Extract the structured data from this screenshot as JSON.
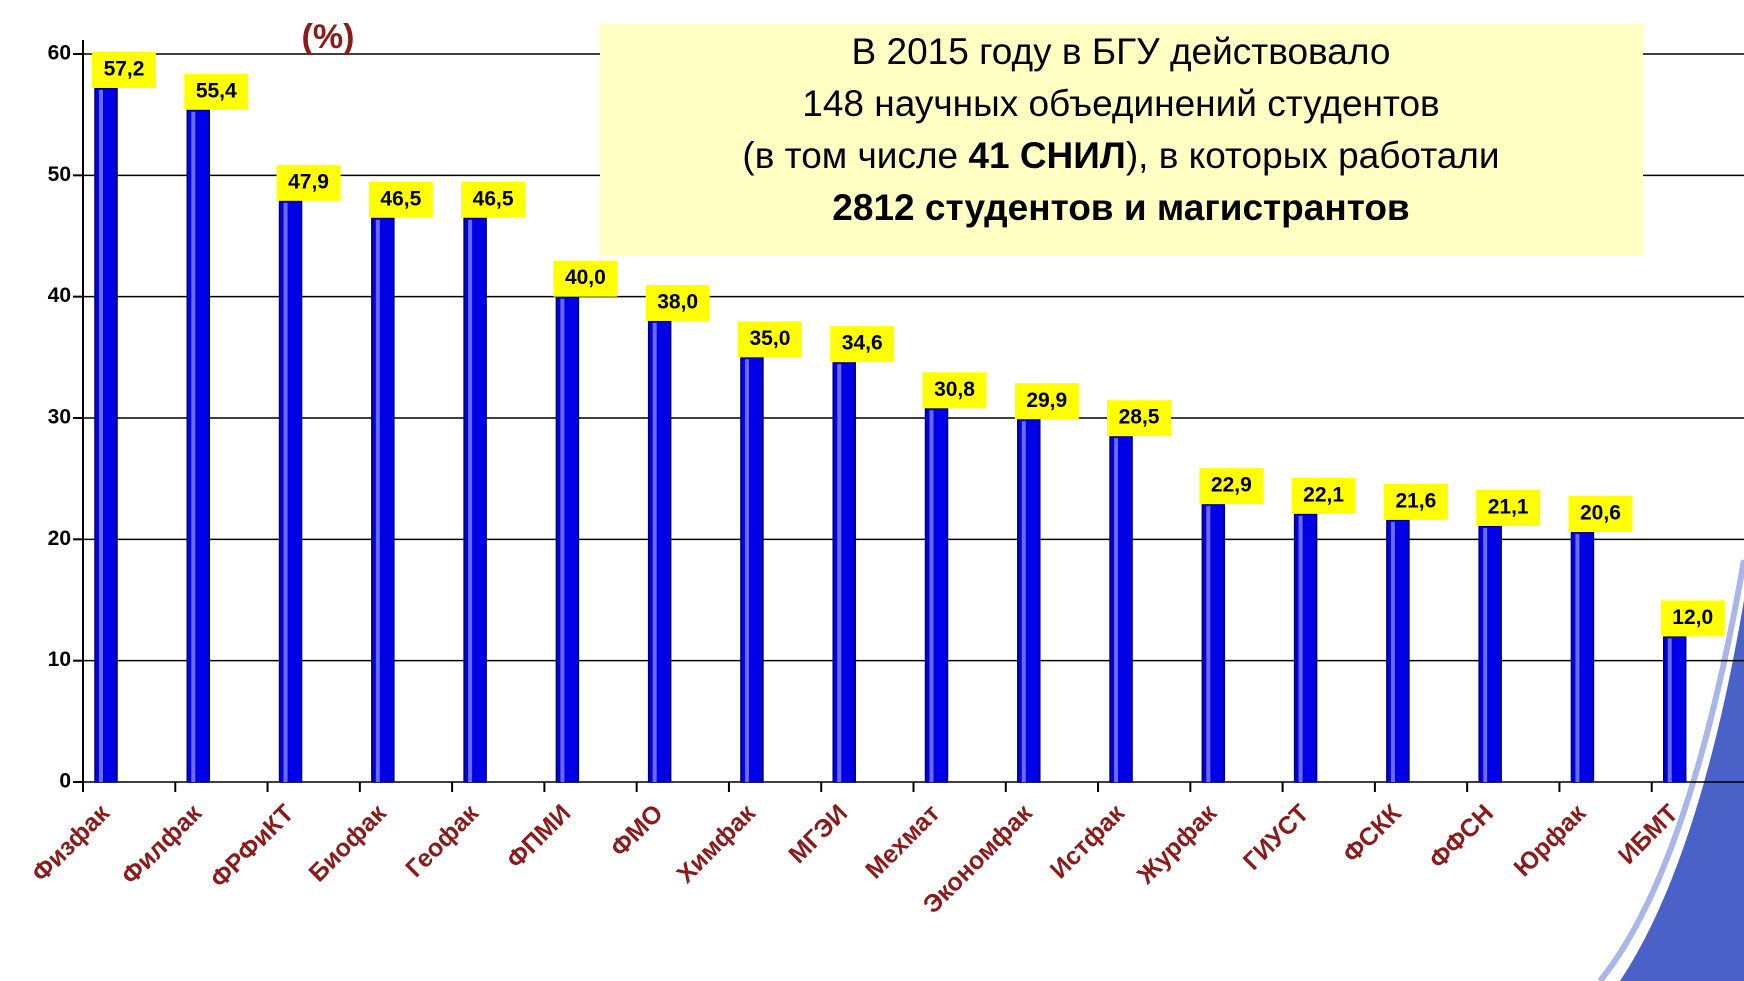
{
  "chart_data": {
    "type": "bar",
    "title": "(%)",
    "categories": [
      "Физфак",
      "Филфак",
      "ФРФиКТ",
      "Биофак",
      "Геофак",
      "ФПМИ",
      "ФМО",
      "Химфак",
      "МГЭИ",
      "Мехмат",
      "Экономфак",
      "Истфак",
      "Журфак",
      "ГИУСТ",
      "ФСКК",
      "ФФСН",
      "Юрфак",
      "ИБМТ"
    ],
    "values": [
      57.2,
      55.4,
      47.9,
      46.5,
      46.5,
      40.0,
      38.0,
      35.0,
      34.6,
      30.8,
      29.9,
      28.5,
      22.9,
      22.1,
      21.6,
      21.1,
      20.6,
      12.0
    ],
    "value_labels": [
      "57,2",
      "55,4",
      "47,9",
      "46,5",
      "46,5",
      "40,0",
      "38,0",
      "35,0",
      "34,6",
      "30,8",
      "29,9",
      "28,5",
      "22,9",
      "22,1",
      "21,6",
      "21,1",
      "20,6",
      "12,0"
    ],
    "color": "#0000e6",
    "ylim": [
      0,
      60
    ],
    "yticks": [
      0,
      10,
      20,
      30,
      40,
      50,
      60
    ],
    "grid": true,
    "annotation": [
      [
        {
          "text": "В 2015 году в БГУ действовало"
        }
      ],
      [
        {
          "text": "148 научных объединений студентов"
        }
      ],
      [
        {
          "text": "(в том числе "
        },
        {
          "text": "41 СНИЛ",
          "bold": true
        },
        {
          "text": "), в которых работали"
        }
      ],
      [
        {
          "text": "2812  студентов и магистрантов",
          "bold": true
        }
      ]
    ]
  }
}
